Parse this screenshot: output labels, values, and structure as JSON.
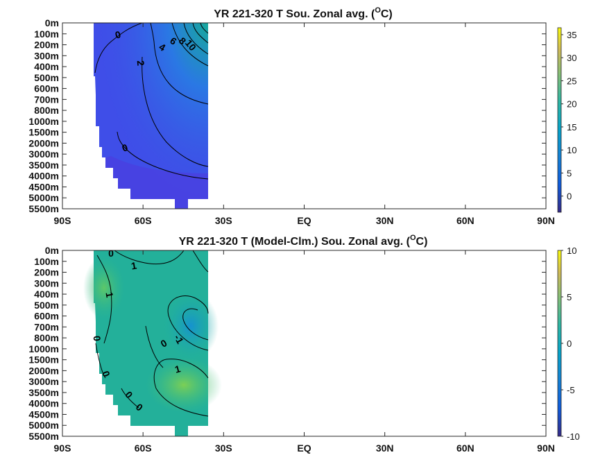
{
  "chart_data": [
    {
      "type": "heatmap",
      "title": "YR 221-320 T Sou. Zonal avg.",
      "title_unit_sup": "O",
      "title_unit_tail": "C)",
      "x_ticks": [
        "90S",
        "60S",
        "30S",
        "EQ",
        "30N",
        "60N",
        "90N"
      ],
      "x_values": [
        -90,
        -60,
        -30,
        0,
        30,
        60,
        90
      ],
      "y_ticks": [
        "0m",
        "100m",
        "200m",
        "300m",
        "400m",
        "500m",
        "600m",
        "700m",
        "800m",
        "1000m",
        "1500m",
        "2000m",
        "3000m",
        "3500m",
        "4000m",
        "4500m",
        "5000m",
        "5500m"
      ],
      "data_lat_range": [
        -78,
        -34
      ],
      "colorbar": {
        "ticks": [
          "35",
          "30",
          "25",
          "20",
          "15",
          "10",
          "5",
          "0"
        ],
        "range": [
          -3.5,
          36.5
        ]
      },
      "contour_labels": [
        "0",
        "10",
        "8",
        "6",
        "4",
        "2",
        "0"
      ],
      "colors": {
        "background": "#3d4fe6",
        "deep": "#4a3de0",
        "warm": "#1ea89a"
      }
    },
    {
      "type": "heatmap",
      "title": "YR 221-320 T (Model-Clm.) Sou. Zonal avg.",
      "title_unit_sup": "O",
      "title_unit_tail": "C)",
      "x_ticks": [
        "90S",
        "60S",
        "30S",
        "EQ",
        "30N",
        "60N",
        "90N"
      ],
      "x_values": [
        -90,
        -60,
        -30,
        0,
        30,
        60,
        90
      ],
      "y_ticks": [
        "0m",
        "100m",
        "200m",
        "300m",
        "400m",
        "500m",
        "600m",
        "700m",
        "800m",
        "1000m",
        "1500m",
        "2000m",
        "3000m",
        "3500m",
        "4000m",
        "4500m",
        "5000m",
        "5500m"
      ],
      "data_lat_range": [
        -78,
        -34
      ],
      "colorbar": {
        "ticks": [
          "10",
          "5",
          "0",
          "-5",
          "-10"
        ],
        "range": [
          -10,
          10
        ]
      },
      "contour_labels": [
        "0",
        "1",
        "1",
        "0",
        "0",
        "-1",
        "1",
        "0",
        "0",
        "0"
      ],
      "colors": {
        "background": "#20b29a",
        "warm": "#6bcb5e",
        "cool": "#1a9dc0"
      }
    }
  ]
}
